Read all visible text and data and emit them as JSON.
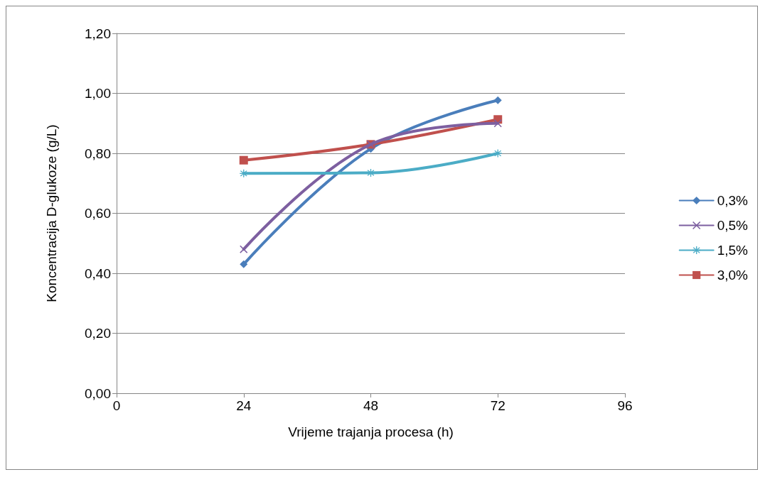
{
  "chart_data": {
    "type": "line",
    "xlabel": "Vrijeme trajanja procesa (h)",
    "ylabel": "Koncentracija D-glukoze (g/L)",
    "x": [
      24,
      48,
      72
    ],
    "series": [
      {
        "name": "0,3%",
        "color": "#4a7ebb",
        "marker": "diamond",
        "values": [
          0.43,
          0.815,
          0.977
        ]
      },
      {
        "name": "0,5%",
        "color": "#7d5fa0",
        "marker": "cross",
        "values": [
          0.48,
          0.83,
          0.9
        ]
      },
      {
        "name": "1,5%",
        "color": "#4bacc6",
        "marker": "star",
        "values": [
          0.733,
          0.735,
          0.8
        ]
      },
      {
        "name": "3,0%",
        "color": "#c0504d",
        "marker": "square",
        "values": [
          0.777,
          0.83,
          0.913
        ]
      }
    ],
    "xlim": [
      0,
      96
    ],
    "xticks": [
      0,
      24,
      48,
      72,
      96
    ],
    "ylim": [
      0,
      1.2
    ],
    "yticks": [
      {
        "value": 0,
        "label": "0,00"
      },
      {
        "value": 0.2,
        "label": "0,20"
      },
      {
        "value": 0.4,
        "label": "0,40"
      },
      {
        "value": 0.6,
        "label": "0,60"
      },
      {
        "value": 0.8,
        "label": "0,80"
      },
      {
        "value": 1,
        "label": "1,00"
      },
      {
        "value": 1.2,
        "label": "1,20"
      }
    ],
    "grid": "y",
    "legend": "right",
    "line_style": "solid"
  }
}
